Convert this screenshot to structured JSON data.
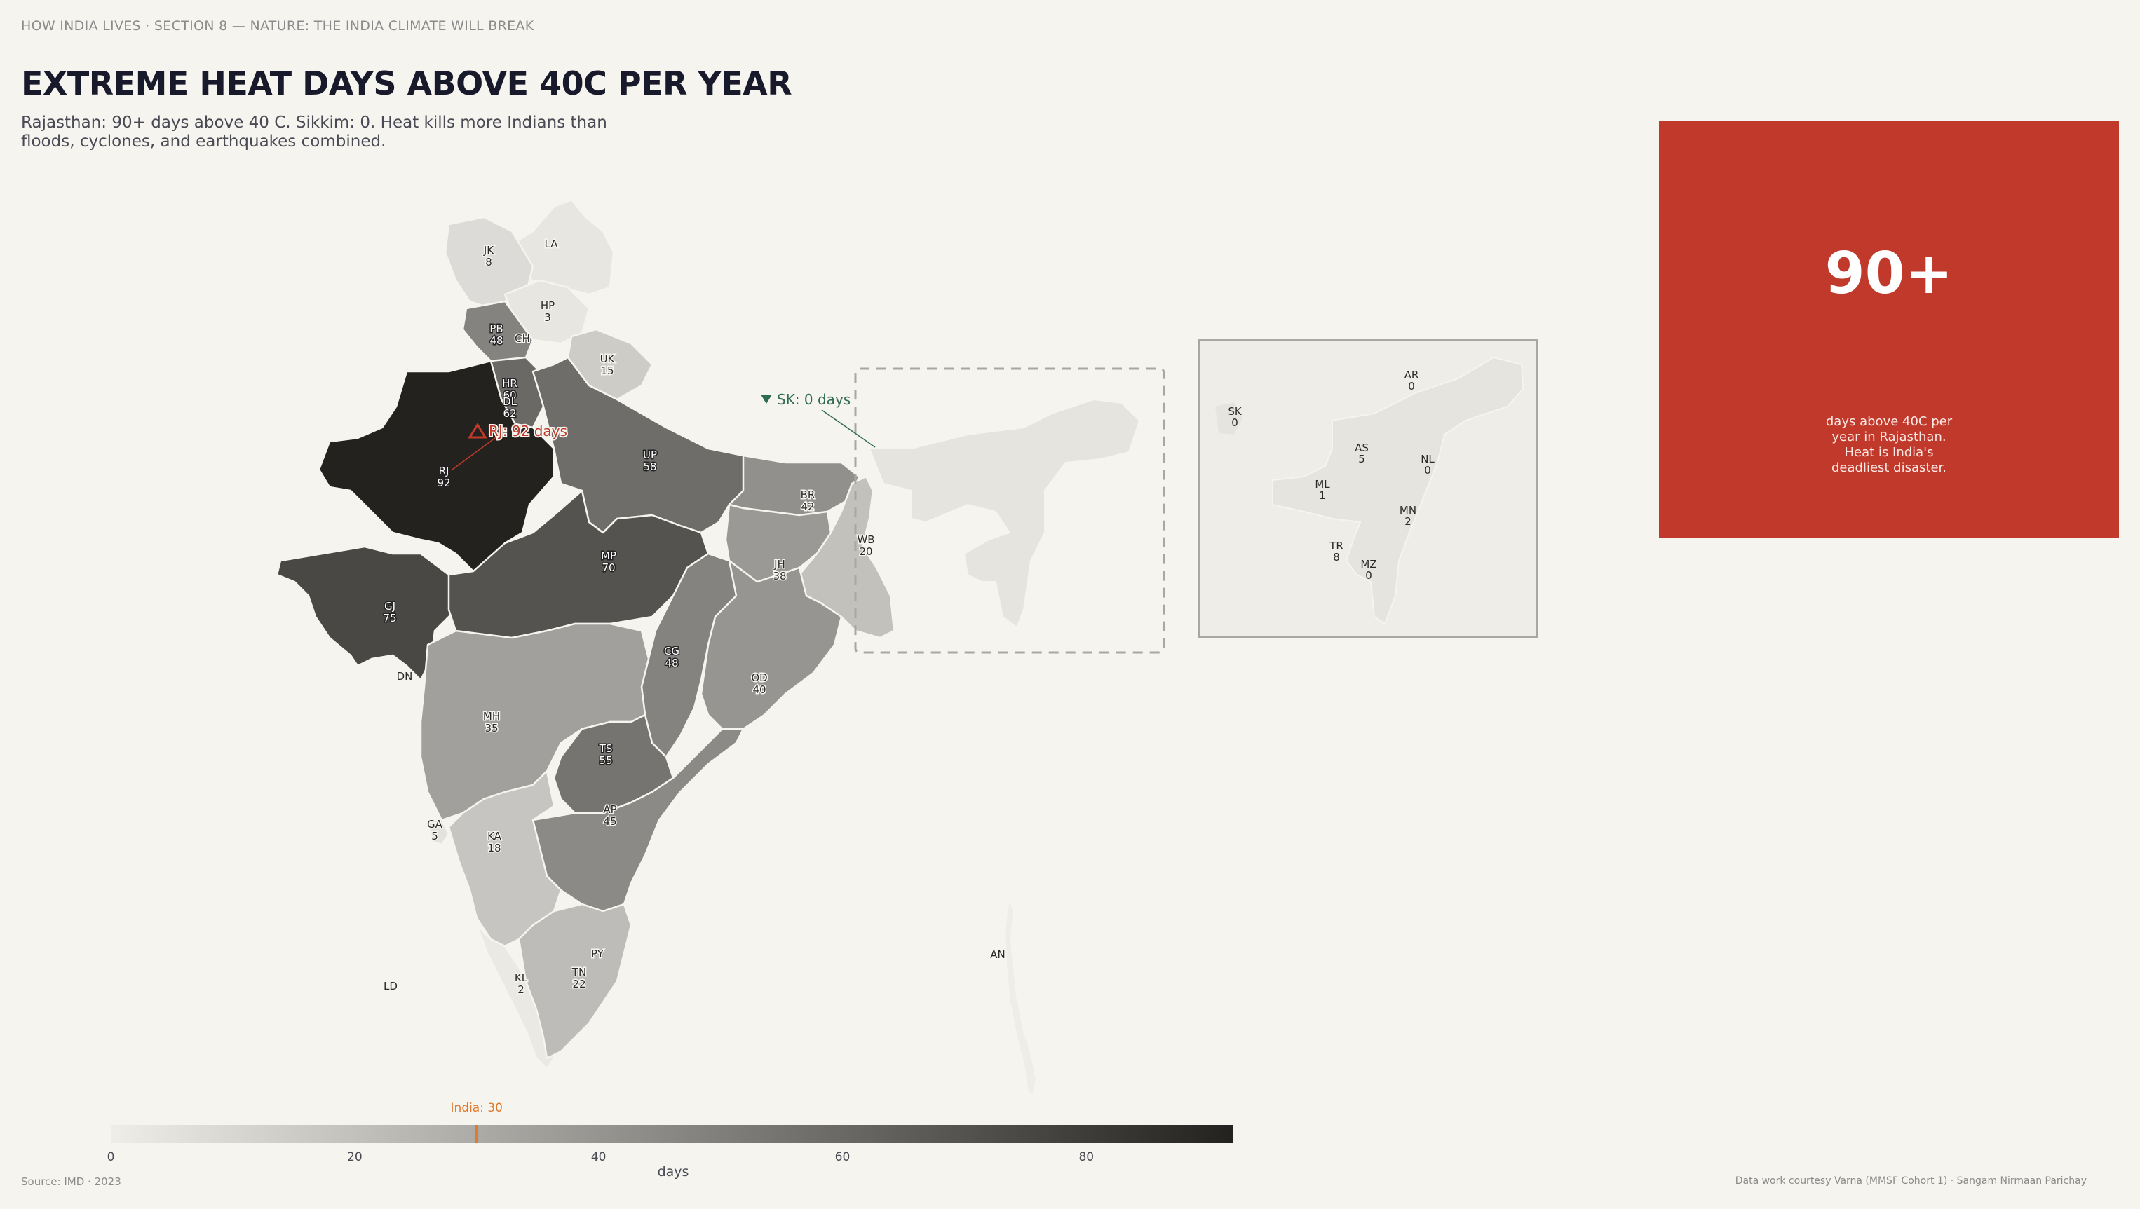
{
  "header": {
    "kicker": "HOW INDIA LIVES  ·  SECTION 8 — NATURE: THE INDIA CLIMATE WILL BREAK",
    "title": "EXTREME HEAT DAYS ABOVE 40C PER YEAR",
    "subtitle": "Rajasthan: 90+ days above 40 C. Sikkim: 0. Heat kills more Indians than floods, cyclones, and earthquakes combined."
  },
  "callout": {
    "value": "90+",
    "text": "days above 40C per year in Rajasthan. Heat is India's deadliest disaster.",
    "color": "#c0392b"
  },
  "annotations": {
    "rj": "RJ: 92 days",
    "sk": "SK: 0 days",
    "rj_color": "#c0392b",
    "sk_color": "#2e6b4e"
  },
  "states": [
    {
      "code": "JK",
      "value": "8"
    },
    {
      "code": "LA",
      "value": ""
    },
    {
      "code": "HP",
      "value": "3"
    },
    {
      "code": "PB",
      "value": "48"
    },
    {
      "code": "CH",
      "value": ""
    },
    {
      "code": "HR",
      "value": "60"
    },
    {
      "code": "DL",
      "value": "62"
    },
    {
      "code": "UK",
      "value": "15"
    },
    {
      "code": "RJ",
      "value": "92"
    },
    {
      "code": "UP",
      "value": "58"
    },
    {
      "code": "BR",
      "value": "42"
    },
    {
      "code": "WB",
      "value": "20"
    },
    {
      "code": "JH",
      "value": "38"
    },
    {
      "code": "MP",
      "value": "70"
    },
    {
      "code": "GJ",
      "value": "75"
    },
    {
      "code": "DN",
      "value": ""
    },
    {
      "code": "CG",
      "value": "48"
    },
    {
      "code": "OD",
      "value": "40"
    },
    {
      "code": "MH",
      "value": "35"
    },
    {
      "code": "TS",
      "value": "55"
    },
    {
      "code": "AP",
      "value": "45"
    },
    {
      "code": "GA",
      "value": "5"
    },
    {
      "code": "KA",
      "value": "18"
    },
    {
      "code": "PY",
      "value": ""
    },
    {
      "code": "TN",
      "value": "22"
    },
    {
      "code": "KL",
      "value": "2"
    },
    {
      "code": "LD",
      "value": ""
    },
    {
      "code": "AN",
      "value": ""
    }
  ],
  "inset_states": [
    {
      "code": "SK",
      "value": "0"
    },
    {
      "code": "AR",
      "value": "0"
    },
    {
      "code": "AS",
      "value": "5"
    },
    {
      "code": "NL",
      "value": "0"
    },
    {
      "code": "ML",
      "value": "1"
    },
    {
      "code": "MN",
      "value": "2"
    },
    {
      "code": "TR",
      "value": "8"
    },
    {
      "code": "MZ",
      "value": "0"
    }
  ],
  "legend": {
    "ticks": [
      "0",
      "20",
      "40",
      "60",
      "80"
    ],
    "tick_values": [
      0,
      20,
      40,
      60,
      80
    ],
    "domain": [
      0,
      92
    ],
    "unit_label": "days",
    "national_label": "India: 30",
    "national_value": 30,
    "national_color": "#e07a2f",
    "color_low": "#efede8",
    "color_high": "#23221f"
  },
  "footer": {
    "source": "Source: IMD  ·  2023",
    "credit": "Data work courtesy Varna (MMSF Cohort 1)  ·  Sangam Nirmaan Parichay"
  }
}
